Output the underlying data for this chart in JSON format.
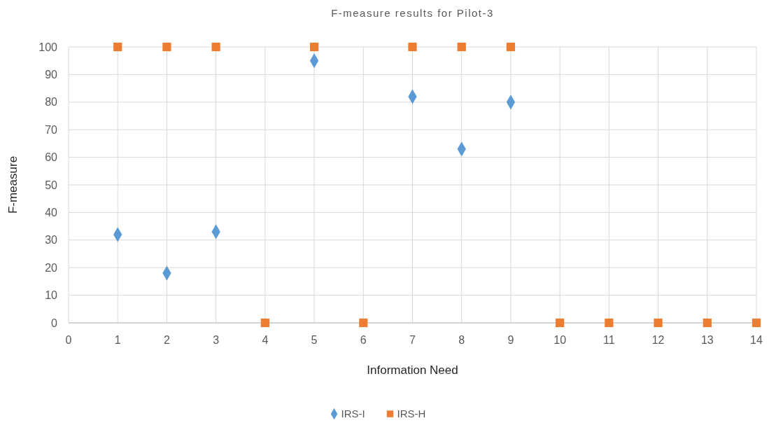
{
  "chart_data": {
    "type": "scatter",
    "title": "F-measure results for Pilot-3",
    "xlabel": "Information Need",
    "ylabel": "F-measure",
    "x": [
      1,
      2,
      3,
      4,
      5,
      6,
      7,
      8,
      9,
      10,
      11,
      12,
      13,
      14
    ],
    "series": [
      {
        "name": "IRS-I",
        "color": "#5b9bd5",
        "marker": "diamond",
        "values": [
          32,
          18,
          33,
          null,
          95,
          null,
          82,
          63,
          80,
          null,
          null,
          null,
          null,
          null
        ]
      },
      {
        "name": "IRS-H",
        "color": "#ed7d31",
        "marker": "square",
        "values": [
          100,
          100,
          100,
          0,
          100,
          0,
          100,
          100,
          100,
          0,
          0,
          0,
          0,
          0
        ]
      }
    ],
    "xlim": [
      0,
      14
    ],
    "xticks": [
      0,
      1,
      2,
      3,
      4,
      5,
      6,
      7,
      8,
      9,
      10,
      11,
      12,
      13,
      14
    ],
    "ylim": [
      0,
      100
    ],
    "yticks": [
      0,
      10,
      20,
      30,
      40,
      50,
      60,
      70,
      80,
      90,
      100
    ],
    "grid": true,
    "legend": "bottom"
  }
}
